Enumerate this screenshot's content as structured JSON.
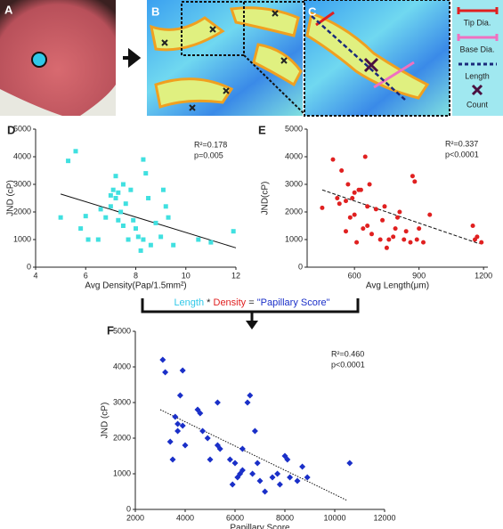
{
  "panels": {
    "letters": [
      "A",
      "B",
      "C"
    ],
    "legend": [
      "Tip Dia.",
      "Base Dia.",
      "Length",
      "Count"
    ],
    "formula": [
      "Length",
      "*",
      "Density",
      "=",
      "\"Papillary Score\""
    ]
  },
  "chart_data": [
    {
      "type": "scatter",
      "letter": "D",
      "marker": "square",
      "color": "#40e0e0",
      "xlabel": "Avg Density(Pap/1.5mm²)",
      "ylabel": "JND (cP)",
      "annotations": [
        "R²=0.178",
        "p=0.005"
      ],
      "x": [
        5.0,
        5.3,
        5.6,
        5.8,
        6.0,
        6.1,
        6.5,
        6.6,
        6.8,
        7.0,
        7.0,
        7.1,
        7.2,
        7.2,
        7.3,
        7.3,
        7.4,
        7.5,
        7.5,
        7.6,
        7.7,
        7.8,
        7.9,
        8.0,
        8.1,
        8.2,
        8.3,
        8.3,
        8.4,
        8.5,
        8.6,
        8.8,
        9.0,
        9.1,
        9.2,
        9.3,
        9.5,
        10.5,
        11.0,
        11.9
      ],
      "values": [
        1800,
        3850,
        4200,
        1400,
        1850,
        1000,
        1000,
        2100,
        1800,
        2600,
        2200,
        2800,
        2500,
        3300,
        2700,
        1700,
        2000,
        3000,
        1500,
        2300,
        1000,
        2800,
        1700,
        1400,
        1100,
        600,
        3900,
        1000,
        3400,
        2500,
        800,
        1600,
        1100,
        2800,
        2200,
        1800,
        800,
        1000,
        900,
        1300
      ],
      "trendline": {
        "style": "solid",
        "x": [
          5,
          12
        ],
        "y": [
          2650,
          700
        ]
      },
      "xlim": [
        4,
        12
      ],
      "xticks": [
        4,
        6,
        8,
        10,
        12
      ],
      "ylim": [
        0,
        5000
      ],
      "yticks": [
        0,
        1000,
        2000,
        3000,
        4000,
        5000
      ]
    },
    {
      "type": "scatter",
      "letter": "E",
      "marker": "circle",
      "color": "#e02020",
      "xlabel": "Avg Length(μm)",
      "ylabel": "JND(cP)",
      "annotations": [
        "R²=0.337",
        "p<0.0001"
      ],
      "x": [
        450,
        500,
        520,
        530,
        540,
        560,
        560,
        570,
        580,
        590,
        600,
        600,
        610,
        620,
        630,
        640,
        650,
        660,
        660,
        670,
        680,
        700,
        720,
        730,
        740,
        750,
        760,
        780,
        790,
        800,
        810,
        830,
        840,
        860,
        870,
        880,
        890,
        900,
        920,
        950,
        1150,
        1160,
        1170,
        1190
      ],
      "values": [
        2150,
        3900,
        2500,
        2300,
        3500,
        2400,
        1300,
        3000,
        1800,
        2500,
        1900,
        2700,
        900,
        2800,
        2800,
        1400,
        4000,
        2200,
        1500,
        3000,
        1200,
        2100,
        1000,
        1700,
        2200,
        700,
        1000,
        1100,
        1400,
        1800,
        2000,
        1000,
        1300,
        900,
        3300,
        3100,
        1000,
        1400,
        900,
        1900,
        1500,
        1000,
        1100,
        900
      ],
      "trendline": {
        "style": "dashed",
        "x": [
          450,
          1180
        ],
        "y": [
          2800,
          850
        ]
      },
      "xlim": [
        380,
        1220
      ],
      "xticks": [
        600,
        900,
        1200
      ],
      "ylim": [
        0,
        5000
      ],
      "yticks": [
        0,
        1000,
        2000,
        3000,
        4000,
        5000
      ]
    },
    {
      "type": "scatter",
      "letter": "F",
      "marker": "diamond",
      "color": "#1a2fc8",
      "xlabel": "Papillary Score",
      "ylabel": "JND (cP)",
      "annotations": [
        "R²=0.460",
        "p<0.0001"
      ],
      "x": [
        3100,
        3200,
        3400,
        3500,
        3600,
        3700,
        3700,
        3800,
        3900,
        3900,
        4000,
        4500,
        4600,
        4700,
        4900,
        5000,
        5300,
        5300,
        5400,
        5800,
        5900,
        6000,
        6100,
        6200,
        6300,
        6300,
        6500,
        6600,
        6700,
        6800,
        6900,
        7000,
        7200,
        7500,
        7700,
        7800,
        8000,
        8100,
        8200,
        8500,
        8700,
        8900,
        10600
      ],
      "values": [
        4200,
        3850,
        1900,
        1400,
        2600,
        2400,
        2200,
        3200,
        2350,
        3900,
        1800,
        2800,
        2700,
        2200,
        2000,
        1400,
        3000,
        1800,
        1700,
        1400,
        700,
        1300,
        900,
        1000,
        1100,
        1700,
        3000,
        3200,
        1000,
        2200,
        1300,
        800,
        500,
        900,
        1000,
        700,
        1500,
        1400,
        900,
        800,
        1200,
        900,
        1300
      ],
      "trendline": {
        "style": "dotted",
        "x": [
          3000,
          10500
        ],
        "y": [
          2800,
          250
        ]
      },
      "xlim": [
        2000,
        12000
      ],
      "xticks": [
        2000,
        4000,
        6000,
        8000,
        10000,
        12000
      ],
      "ylim": [
        0,
        5000
      ],
      "yticks": [
        0,
        1000,
        2000,
        3000,
        4000,
        5000
      ]
    }
  ]
}
